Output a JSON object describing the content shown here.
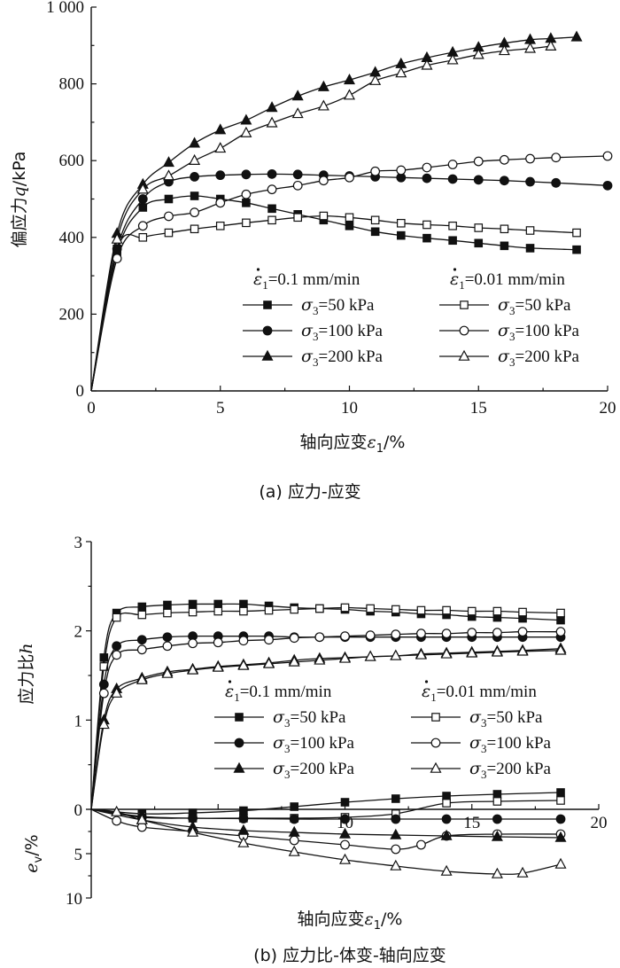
{
  "chart_data": [
    {
      "type": "line",
      "title": "(a) 应力-应变",
      "xlabel": "轴向应变",
      "xlabel_symbol": "ε",
      "xlabel_sub": "1",
      "xlabel_unit": "/%",
      "ylabel": "偏应力",
      "ylabel_symbol": "q",
      "ylabel_unit": "/kPa",
      "xlim": [
        0,
        20
      ],
      "ylim": [
        0,
        1000
      ],
      "xticks": [
        0,
        5,
        10,
        15,
        20
      ],
      "xtick_labels": [
        "0",
        "5",
        "10",
        "15",
        "20"
      ],
      "yticks": [
        0,
        200,
        400,
        600,
        800,
        1000
      ],
      "ytick_labels": [
        "0",
        "200",
        "400",
        "600",
        "800",
        "1 000"
      ],
      "legend": {
        "group_headers": [
          "=0.1 mm/min",
          "=0.01 mm/min"
        ],
        "rate_symbol": "ε",
        "rate_sub": "1",
        "entries": [
          "=50 kPa",
          "=100 kPa",
          "=200 kPa",
          "=50 kPa",
          "=100 kPa",
          "=200 kPa"
        ],
        "entry_symbol": "σ",
        "entry_sub": "3"
      },
      "series": [
        {
          "name": "0.1 mm/min, σ3=50 kPa",
          "marker": "square-filled",
          "x": [
            0,
            1,
            2,
            3,
            4,
            5,
            6,
            7,
            8,
            9,
            10,
            11,
            12,
            13,
            14,
            15,
            16,
            17,
            18.8
          ],
          "y": [
            0,
            360,
            478,
            500,
            508,
            500,
            490,
            475,
            460,
            445,
            430,
            415,
            405,
            398,
            392,
            385,
            378,
            372,
            368
          ]
        },
        {
          "name": "0.01 mm/min, σ3=50 kPa",
          "marker": "square-open",
          "x": [
            0,
            1,
            2,
            3,
            4,
            5,
            6,
            7,
            8,
            9,
            10,
            11,
            12,
            13,
            14,
            15,
            16,
            17,
            18.8
          ],
          "y": [
            0,
            370,
            400,
            412,
            422,
            430,
            438,
            445,
            452,
            456,
            452,
            445,
            437,
            433,
            430,
            425,
            422,
            418,
            412
          ]
        },
        {
          "name": "0.1 mm/min, σ3=100 kPa",
          "marker": "circle-filled",
          "x": [
            0,
            1,
            2,
            3,
            4,
            5,
            6,
            7,
            8,
            9,
            10,
            11,
            12,
            13,
            14,
            15,
            16,
            17,
            18,
            20
          ],
          "y": [
            0,
            370,
            500,
            545,
            558,
            562,
            564,
            565,
            564,
            562,
            560,
            558,
            556,
            554,
            552,
            550,
            548,
            545,
            542,
            535
          ]
        },
        {
          "name": "0.01 mm/min, σ3=100 kPa",
          "marker": "circle-open",
          "x": [
            0,
            1,
            2,
            3,
            4,
            5,
            6,
            7,
            8,
            9,
            10,
            11,
            12,
            13,
            14,
            15,
            16,
            17,
            18,
            20
          ],
          "y": [
            0,
            345,
            430,
            455,
            465,
            490,
            512,
            525,
            535,
            548,
            556,
            572,
            575,
            582,
            590,
            598,
            602,
            605,
            608,
            612
          ]
        },
        {
          "name": "0.1 mm/min, σ3=200 kPa",
          "marker": "triangle-filled",
          "x": [
            0,
            1,
            2,
            3,
            4,
            5,
            6,
            7,
            8,
            9,
            10,
            11,
            12,
            13,
            14,
            15,
            16,
            17,
            17.8,
            18.8
          ],
          "y": [
            0,
            410,
            538,
            595,
            645,
            680,
            705,
            738,
            768,
            792,
            810,
            830,
            852,
            868,
            882,
            895,
            906,
            915,
            918,
            922
          ]
        },
        {
          "name": "0.01 mm/min, σ3=200 kPa",
          "marker": "triangle-open",
          "x": [
            0,
            1,
            2,
            3,
            4,
            5,
            6,
            7,
            8,
            9,
            10,
            11,
            12,
            13,
            14,
            15,
            16,
            17,
            17.8
          ],
          "y": [
            0,
            395,
            525,
            560,
            600,
            632,
            672,
            698,
            722,
            742,
            770,
            808,
            828,
            848,
            862,
            876,
            886,
            892,
            898
          ]
        }
      ]
    },
    {
      "type": "line",
      "title": "(b) 应力比-体变-轴向应变",
      "xlabel": "轴向应变",
      "xlabel_symbol": "ε",
      "xlabel_sub": "1",
      "xlabel_unit": "/%",
      "ylabel_upper": "应力比",
      "ylabel_upper_symbol": "h",
      "ylabel_lower_symbol": "e",
      "ylabel_lower_sub": "v",
      "ylabel_lower_unit": "/%",
      "xlim": [
        0,
        20
      ],
      "upper_ylim": [
        0,
        3
      ],
      "lower_ylim": [
        0,
        10
      ],
      "upper_yticks": [
        0,
        1,
        2,
        3
      ],
      "upper_ytick_labels": [
        "0",
        "1",
        "2",
        "3"
      ],
      "lower_ytick_labels": [
        "0",
        "5",
        "10"
      ],
      "xtick_labels": [
        "10",
        "15",
        "20"
      ],
      "legend": {
        "group_headers": [
          "=0.1 mm/min",
          "=0.01 mm/min"
        ],
        "rate_symbol": "ε",
        "rate_sub": "1",
        "entries": [
          "=50 kPa",
          "=100 kPa",
          "=200 kPa",
          "=50 kPa",
          "=100 kPa",
          "=200 kPa"
        ],
        "entry_symbol": "σ",
        "entry_sub": "3"
      },
      "upper_series": [
        {
          "name": "0.1 mm/min, σ3=50 kPa",
          "marker": "square-filled",
          "x": [
            0,
            0.5,
            1,
            2,
            3,
            4,
            5,
            6,
            7,
            8,
            9,
            10,
            11,
            12,
            13,
            14,
            15,
            16,
            17,
            18.5
          ],
          "y": [
            0,
            1.7,
            2.2,
            2.27,
            2.29,
            2.3,
            2.3,
            2.3,
            2.28,
            2.26,
            2.25,
            2.24,
            2.22,
            2.21,
            2.19,
            2.18,
            2.16,
            2.15,
            2.14,
            2.12
          ]
        },
        {
          "name": "0.01 mm/min, σ3=50 kPa",
          "marker": "square-open",
          "x": [
            0,
            0.5,
            1,
            2,
            3,
            4,
            5,
            6,
            7,
            8,
            9,
            10,
            11,
            12,
            13,
            14,
            15,
            16,
            17,
            18.5
          ],
          "y": [
            0,
            1.6,
            2.15,
            2.18,
            2.2,
            2.21,
            2.22,
            2.22,
            2.23,
            2.24,
            2.25,
            2.26,
            2.25,
            2.24,
            2.23,
            2.23,
            2.22,
            2.22,
            2.21,
            2.2
          ]
        },
        {
          "name": "0.1 mm/min, σ3=100 kPa",
          "marker": "circle-filled",
          "x": [
            0,
            0.5,
            1,
            2,
            3,
            4,
            5,
            6,
            7,
            8,
            9,
            10,
            11,
            12,
            13,
            14,
            15,
            16,
            17,
            18.5
          ],
          "y": [
            0,
            1.4,
            1.83,
            1.9,
            1.93,
            1.94,
            1.94,
            1.94,
            1.94,
            1.93,
            1.93,
            1.93,
            1.93,
            1.93,
            1.93,
            1.93,
            1.93,
            1.93,
            1.93,
            1.93
          ]
        },
        {
          "name": "0.01 mm/min, σ3=100 kPa",
          "marker": "circle-open",
          "x": [
            0,
            0.5,
            1,
            2,
            3,
            4,
            5,
            6,
            7,
            8,
            9,
            10,
            11,
            12,
            13,
            14,
            15,
            16,
            17,
            18.5
          ],
          "y": [
            0,
            1.3,
            1.73,
            1.79,
            1.83,
            1.86,
            1.87,
            1.89,
            1.9,
            1.92,
            1.93,
            1.94,
            1.95,
            1.96,
            1.97,
            1.97,
            1.98,
            1.98,
            1.99,
            1.99
          ]
        },
        {
          "name": "0.1 mm/min, σ3=200 kPa",
          "marker": "triangle-filled",
          "x": [
            0,
            0.5,
            1,
            2,
            3,
            4,
            5,
            6,
            7,
            8,
            9,
            10,
            11,
            12,
            13,
            14,
            15,
            16,
            17,
            18.5
          ],
          "y": [
            0,
            1.0,
            1.35,
            1.47,
            1.54,
            1.57,
            1.6,
            1.62,
            1.64,
            1.67,
            1.69,
            1.7,
            1.71,
            1.72,
            1.74,
            1.75,
            1.76,
            1.77,
            1.78,
            1.8
          ]
        },
        {
          "name": "0.01 mm/min, σ3=200 kPa",
          "marker": "triangle-open",
          "x": [
            0,
            0.5,
            1,
            2,
            3,
            4,
            5,
            6,
            7,
            8,
            9,
            10,
            11,
            12,
            13,
            14,
            15,
            16,
            17,
            18.5
          ],
          "y": [
            0,
            0.95,
            1.3,
            1.45,
            1.52,
            1.56,
            1.59,
            1.61,
            1.63,
            1.65,
            1.67,
            1.69,
            1.71,
            1.72,
            1.73,
            1.74,
            1.75,
            1.76,
            1.77,
            1.78
          ]
        }
      ],
      "lower_series": [
        {
          "name": "0.1 mm/min, σ3=50 kPa",
          "marker": "square-filled",
          "x": [
            0,
            2,
            4,
            6,
            8,
            10,
            12,
            14,
            16,
            18.5
          ],
          "y": [
            0,
            0.5,
            0.4,
            0.15,
            -0.3,
            -0.8,
            -1.2,
            -1.5,
            -1.7,
            -1.9
          ]
        },
        {
          "name": "0.01 mm/min, σ3=50 kPa",
          "marker": "square-open",
          "x": [
            0,
            2,
            4,
            6,
            8,
            10,
            12,
            14,
            16,
            18.5
          ],
          "y": [
            0,
            0.8,
            1.0,
            1.0,
            1.0,
            0.9,
            0.5,
            -0.7,
            -0.9,
            -1.0
          ]
        },
        {
          "name": "0.1 mm/min, σ3=100 kPa",
          "marker": "circle-filled",
          "x": [
            0,
            2,
            4,
            6,
            8,
            10,
            12,
            14,
            16,
            18.5
          ],
          "y": [
            0,
            0.9,
            1.0,
            1.05,
            1.1,
            1.1,
            1.1,
            1.1,
            1.1,
            1.1
          ]
        },
        {
          "name": "0.01 mm/min, σ3=100 kPa",
          "marker": "circle-open",
          "x": [
            0,
            1,
            2,
            4,
            6,
            8,
            10,
            12,
            13,
            14,
            16,
            18.5
          ],
          "y": [
            0,
            1.3,
            2.0,
            2.5,
            3.0,
            3.5,
            4.0,
            4.5,
            4.0,
            3.0,
            2.8,
            2.8
          ]
        },
        {
          "name": "0.1 mm/min, σ3=200 kPa",
          "marker": "triangle-filled",
          "x": [
            0,
            2,
            4,
            6,
            8,
            10,
            12,
            14,
            16,
            18.5
          ],
          "y": [
            0,
            1.2,
            2.0,
            2.4,
            2.6,
            2.8,
            2.9,
            3.0,
            3.1,
            3.2
          ]
        },
        {
          "name": "0.01 mm/min, σ3=200 kPa",
          "marker": "triangle-open",
          "x": [
            0,
            1,
            2,
            4,
            6,
            8,
            10,
            12,
            14,
            16,
            17,
            18.5
          ],
          "y": [
            0,
            0.3,
            1.2,
            2.6,
            3.8,
            4.8,
            5.7,
            6.4,
            7.0,
            7.3,
            7.2,
            6.2
          ]
        }
      ]
    }
  ]
}
